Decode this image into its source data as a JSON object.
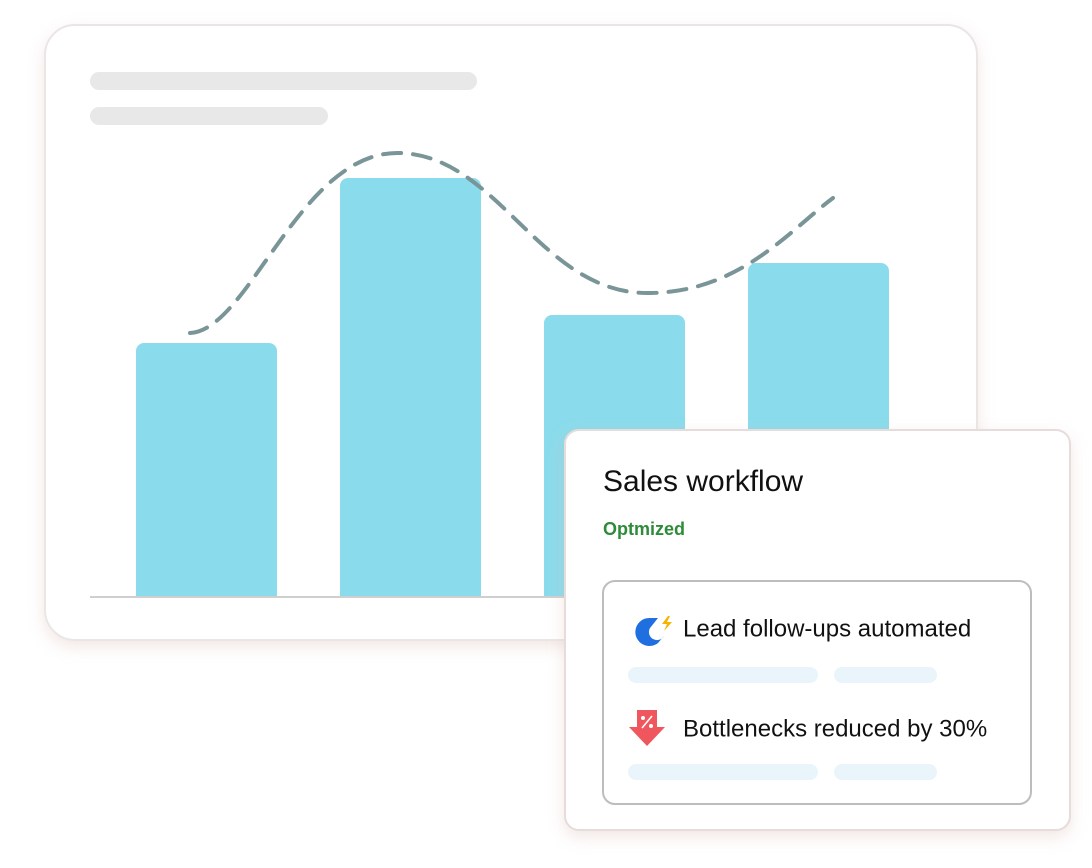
{
  "card": {
    "title": "Sales workflow",
    "status": "Optmized",
    "items": [
      {
        "label": "Lead follow-ups automated"
      },
      {
        "label": "Bottlenecks reduced by 30%"
      }
    ]
  }
}
